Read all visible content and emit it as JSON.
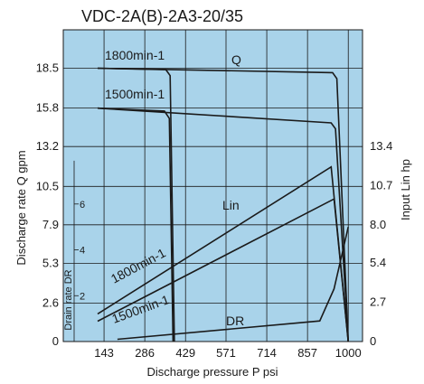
{
  "chart_data": {
    "type": "line",
    "title": "VDC-2A(B)-2A3-20/35",
    "xlabel": "Discharge pressure P psi",
    "ylabel_left": "Discharge rate Q gpm",
    "ylabel_right": "Input Lin hp",
    "ylabel_drain": "Drain rate DR",
    "x_ticks": [
      "143",
      "286",
      "429",
      "571",
      "714",
      "857",
      "1000"
    ],
    "x_tick_values": [
      143,
      286,
      429,
      571,
      714,
      857,
      1000
    ],
    "xlim": [
      0,
      1050
    ],
    "y_left_ticks": [
      "0",
      "2.6",
      "5.3",
      "7.9",
      "10.5",
      "13.2",
      "15.8",
      "18.5"
    ],
    "y_left_values": [
      0,
      2.6,
      5.3,
      7.9,
      10.5,
      13.2,
      15.8,
      18.5
    ],
    "ylim_left": [
      0,
      21.1
    ],
    "y_right_ticks": [
      "0",
      "2.7",
      "5.4",
      "8.0",
      "10.7",
      "13.4"
    ],
    "y_right_values": [
      0,
      2.7,
      5.4,
      8.0,
      10.7,
      13.4
    ],
    "drain_ticks": [
      "2",
      "4",
      "6"
    ],
    "drain_tick_values": [
      2,
      4,
      6
    ],
    "drain_ylim": [
      0,
      13.6
    ],
    "annotations": {
      "q_label": "Q",
      "lin_label": "Lin",
      "dr_label": "DR",
      "rpm1800_top": "1800min-1",
      "rpm1500_top": "1500min-1",
      "rpm1800_lin": "1800min-1",
      "rpm1500_lin": "1500min-1"
    },
    "series": [
      {
        "group": "Q",
        "axis": "left",
        "x": [
          0,
          360,
          375,
          390
        ],
        "y": [
          18.5,
          18.4,
          18.0,
          0
        ],
        "color": "#1a1a1a"
      },
      {
        "group": "Q",
        "axis": "left",
        "x": [
          0,
          945,
          960,
          1000
        ],
        "y": [
          18.5,
          18.2,
          17.8,
          0
        ],
        "color": "#1a1a1a"
      },
      {
        "group": "Q",
        "axis": "left",
        "x": [
          0,
          355,
          372,
          385
        ],
        "y": [
          15.8,
          15.6,
          15.1,
          0
        ],
        "color": "#1a1a1a"
      },
      {
        "group": "Q",
        "axis": "left",
        "x": [
          0,
          940,
          955,
          1000
        ],
        "y": [
          15.8,
          14.8,
          14.4,
          0
        ],
        "color": "#1a1a1a"
      },
      {
        "group": "Lin",
        "axis": "right",
        "x": [
          0,
          940,
          1000
        ],
        "y": [
          1.9,
          12.0,
          0
        ],
        "color": "#1a1a1a"
      },
      {
        "group": "Lin",
        "axis": "right",
        "x": [
          0,
          950,
          1000
        ],
        "y": [
          1.4,
          9.8,
          0
        ],
        "color": "#1a1a1a"
      },
      {
        "group": "DR",
        "axis": "drain",
        "x": [
          190,
          900,
          950,
          1000
        ],
        "y": [
          0.1,
          0.9,
          2.3,
          5.0
        ],
        "color": "#1a1a1a"
      }
    ]
  }
}
